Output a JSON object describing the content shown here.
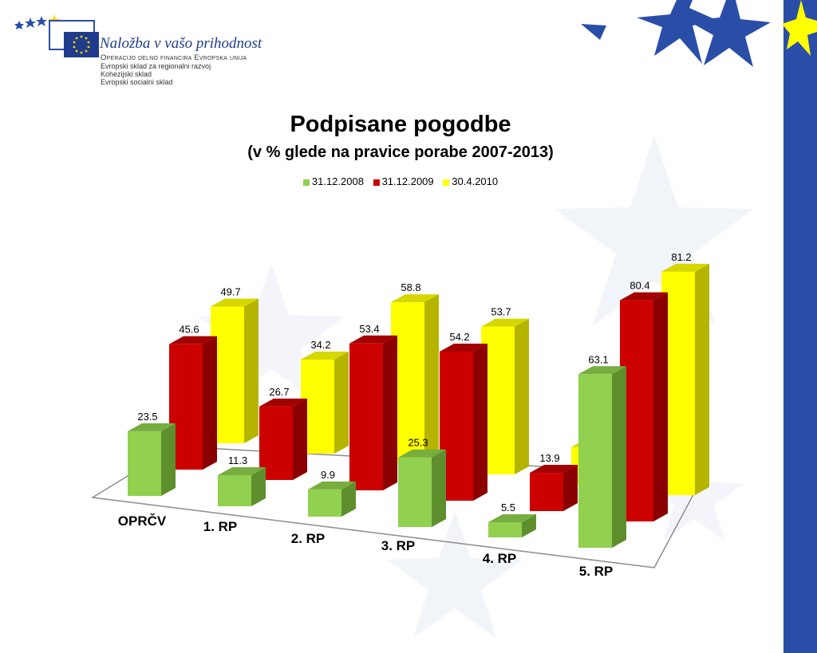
{
  "logo": {
    "main": "Naložba v vašo prihodnost",
    "line1": "Operacijo delno financira Evropska unija",
    "line2": "Evropski sklad za regionalni razvoj",
    "line3": "Kohezijski sklad",
    "line4": "Evropski socialni sklad"
  },
  "colors": {
    "blue": "#2a4ea8",
    "series_green": "#92d050",
    "series_red": "#cc0000",
    "series_yellow": "#ffff00"
  },
  "chart_data": {
    "type": "bar",
    "title": "Podpisane pogodbe",
    "subtitle": "(v % glede na pravice porabe 2007-2013)",
    "categories": [
      "OPRČV",
      "1. RP",
      "2. RP",
      "3. RP",
      "4. RP",
      "5. RP"
    ],
    "series": [
      {
        "name": "31.12.2008",
        "values": [
          23.5,
          11.3,
          9.9,
          25.3,
          5.5,
          63.1
        ]
      },
      {
        "name": "31.12.2009",
        "values": [
          45.6,
          26.7,
          53.4,
          54.2,
          13.9,
          80.4
        ]
      },
      {
        "name": "30.4.2010",
        "values": [
          49.7,
          34.2,
          58.8,
          53.7,
          13.7,
          81.2
        ]
      }
    ],
    "legend_position": "top"
  }
}
